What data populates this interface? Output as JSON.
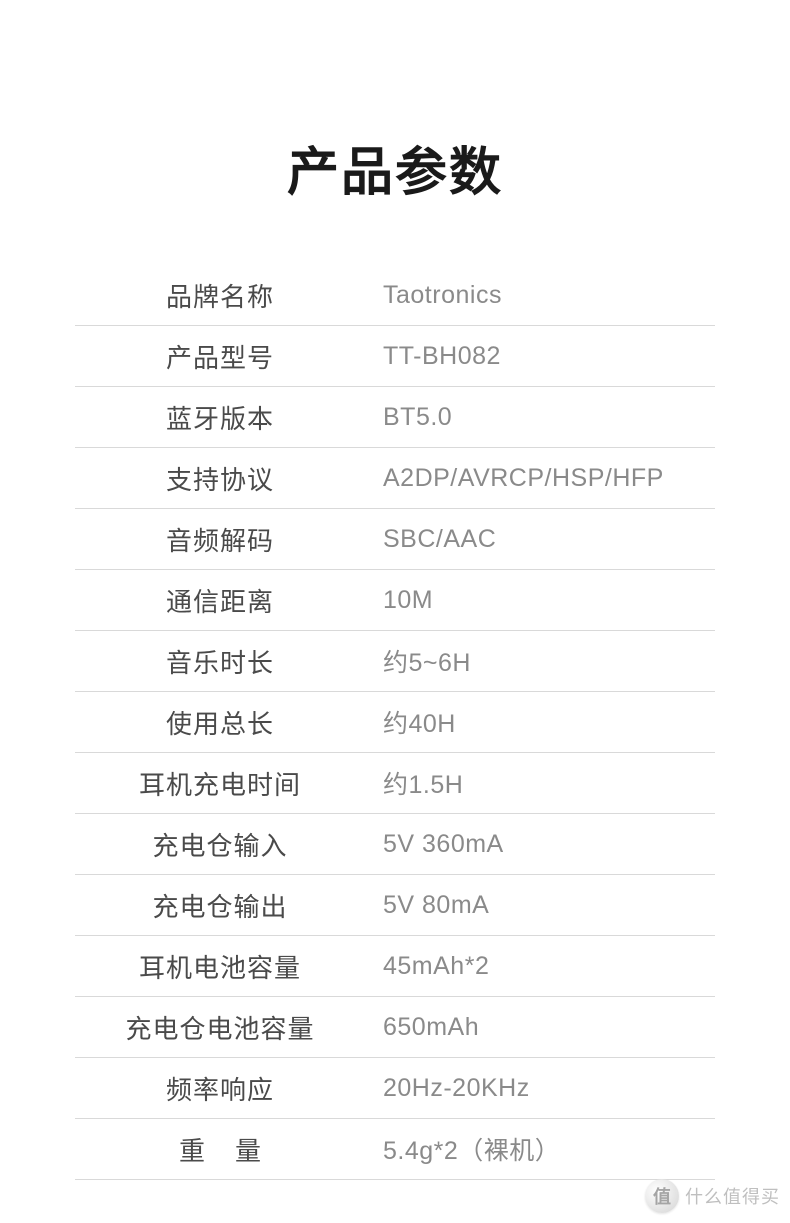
{
  "title": "产品参数",
  "specs": [
    {
      "label": "品牌名称",
      "value": "Taotronics"
    },
    {
      "label": "产品型号",
      "value": "TT-BH082"
    },
    {
      "label": "蓝牙版本",
      "value": "BT5.0"
    },
    {
      "label": "支持协议",
      "value": "A2DP/AVRCP/HSP/HFP"
    },
    {
      "label": "音频解码",
      "value": "SBC/AAC"
    },
    {
      "label": "通信距离",
      "value": "10M"
    },
    {
      "label": "音乐时长",
      "value": "约5~6H"
    },
    {
      "label": "使用总长",
      "value": "约40H"
    },
    {
      "label": "耳机充电时间",
      "value": "约1.5H"
    },
    {
      "label": "充电仓输入",
      "value": "5V   360mA"
    },
    {
      "label": "充电仓输出",
      "value": "5V   80mA"
    },
    {
      "label": "耳机电池容量",
      "value": "45mAh*2"
    },
    {
      "label": "充电仓电池容量",
      "value": "650mAh"
    },
    {
      "label": "频率响应",
      "value": "20Hz-20KHz"
    },
    {
      "label": "重量",
      "value": "5.4g*2（裸机）",
      "spaced": true
    }
  ],
  "watermark": {
    "icon": "值",
    "text": "什么值得买"
  },
  "colors": {
    "title": "#1a1a1a",
    "label": "#4a4a4a",
    "value": "#8a8a8a",
    "border": "#d9d9d9",
    "background": "#ffffff"
  }
}
